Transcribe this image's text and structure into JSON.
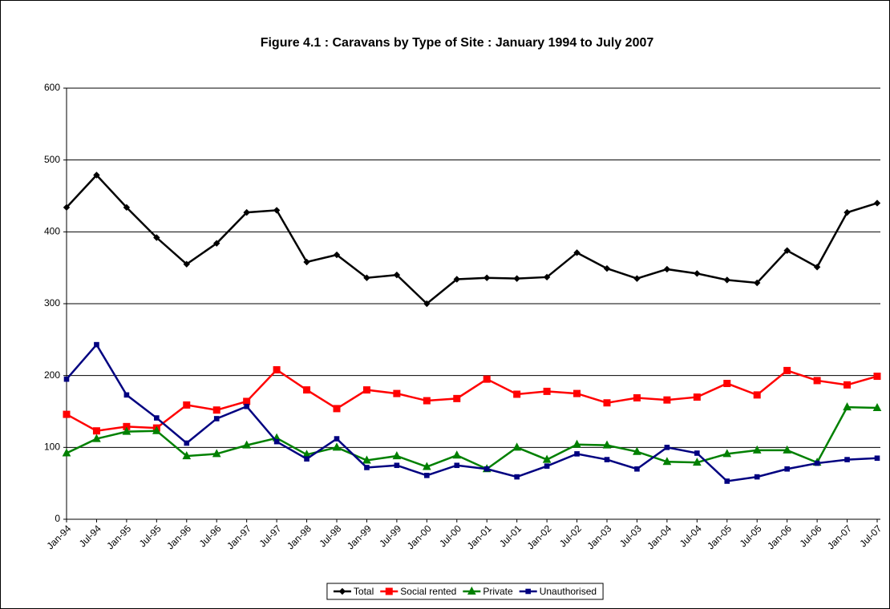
{
  "chart_data": {
    "type": "line",
    "title": "Figure 4.1 : Caravans by Type of Site : January 1994 to July 2007",
    "categories": [
      "Jan-94",
      "Jul-94",
      "Jan-95",
      "Jul-95",
      "Jan-96",
      "Jul-96",
      "Jan-97",
      "Jul-97",
      "Jan-98",
      "Jul-98",
      "Jan-99",
      "Jul-99",
      "Jan-00",
      "Jul-00",
      "Jan-01",
      "Jul-01",
      "Jan-02",
      "Jul-02",
      "Jan-03",
      "Jul-03",
      "Jan-04",
      "Jul-04",
      "Jan-05",
      "Jul-05",
      "Jan-06",
      "Jul-06",
      "Jan-07",
      "Jul-07"
    ],
    "series": [
      {
        "name": "Total",
        "color": "#000000",
        "marker": "diamond",
        "values": [
          434,
          479,
          434,
          392,
          355,
          384,
          427,
          430,
          358,
          368,
          336,
          340,
          300,
          334,
          336,
          335,
          337,
          371,
          349,
          335,
          348,
          342,
          333,
          329,
          374,
          351,
          427,
          440
        ]
      },
      {
        "name": "Social rented",
        "color": "#ff0000",
        "marker": "square",
        "values": [
          146,
          123,
          129,
          127,
          159,
          152,
          164,
          208,
          180,
          154,
          180,
          175,
          165,
          168,
          195,
          174,
          178,
          175,
          162,
          169,
          166,
          170,
          189,
          173,
          207,
          193,
          187,
          199
        ]
      },
      {
        "name": "Private",
        "color": "#008000",
        "marker": "triangle",
        "values": [
          92,
          112,
          122,
          123,
          88,
          91,
          103,
          113,
          90,
          100,
          82,
          88,
          73,
          89,
          70,
          100,
          83,
          104,
          103,
          94,
          80,
          79,
          91,
          96,
          96,
          79,
          156,
          155
        ]
      },
      {
        "name": "Unauthorised",
        "color": "#000080",
        "marker": "smallsquare",
        "values": [
          195,
          243,
          173,
          141,
          106,
          140,
          157,
          108,
          84,
          112,
          72,
          75,
          61,
          75,
          70,
          59,
          74,
          91,
          83,
          70,
          100,
          92,
          53,
          59,
          70,
          78,
          83,
          85
        ]
      }
    ],
    "ylim": [
      0,
      600
    ],
    "yticks": [
      0,
      100,
      200,
      300,
      400,
      500,
      600
    ],
    "grid": true,
    "legend": "bottom"
  }
}
